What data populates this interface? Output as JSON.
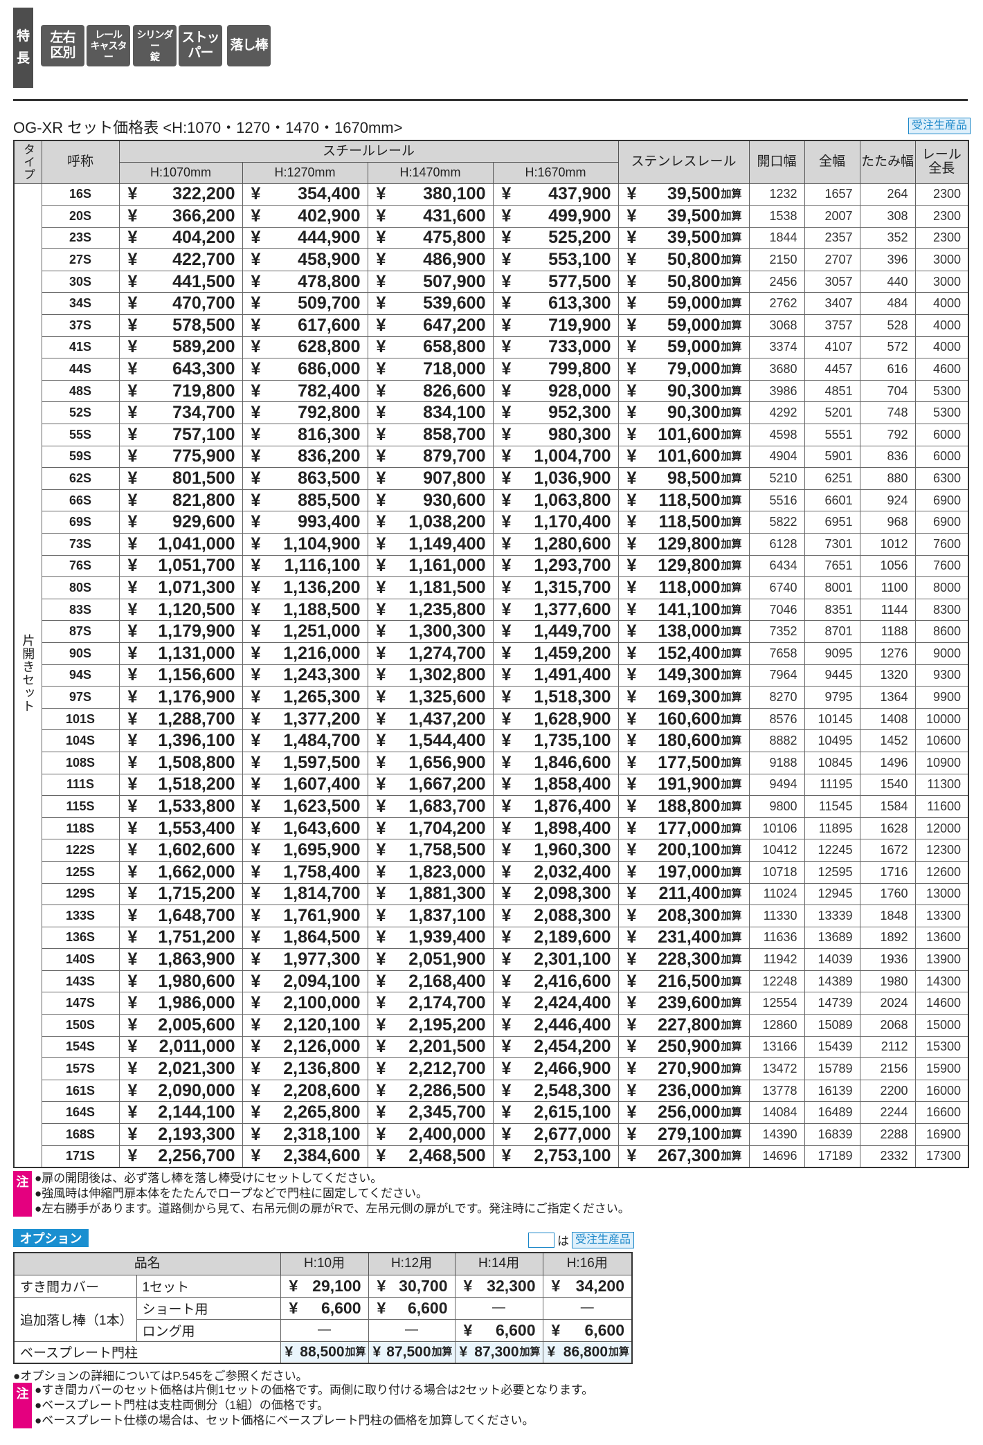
{
  "features": {
    "label": "特\n長",
    "tags": [
      "左右\n区別",
      "レール\nキャスター",
      "シリンダー\n錠",
      "ストッパー",
      "落し棒"
    ]
  },
  "title": "OG-XR セット価格表 <H:1070・1270・1470・1670mm>",
  "made_to_order": "受注生産品",
  "price_table": {
    "headers": {
      "type": "タイプ",
      "name": "呼称",
      "steel": "スチールレール",
      "heights": [
        "H:1070mm",
        "H:1270mm",
        "H:1470mm",
        "H:1670mm"
      ],
      "stainless": "ステンレスレール",
      "opening": "開口幅",
      "width": "全幅",
      "folded": "たたみ幅",
      "rail": "レール\n全長"
    },
    "type_label": "片開きセット",
    "yen": "¥",
    "surcharge": "加算",
    "rows": [
      [
        "16S",
        "322,200",
        "354,400",
        "380,100",
        "437,900",
        "39,500",
        1232,
        1657,
        264,
        2300
      ],
      [
        "20S",
        "366,200",
        "402,900",
        "431,600",
        "499,900",
        "39,500",
        1538,
        2007,
        308,
        2300
      ],
      [
        "23S",
        "404,200",
        "444,900",
        "475,800",
        "525,200",
        "39,500",
        1844,
        2357,
        352,
        2300
      ],
      [
        "27S",
        "422,700",
        "458,900",
        "486,900",
        "553,100",
        "50,800",
        2150,
        2707,
        396,
        3000
      ],
      [
        "30S",
        "441,500",
        "478,800",
        "507,900",
        "577,500",
        "50,800",
        2456,
        3057,
        440,
        3000
      ],
      [
        "34S",
        "470,700",
        "509,700",
        "539,600",
        "613,300",
        "59,000",
        2762,
        3407,
        484,
        4000
      ],
      [
        "37S",
        "578,500",
        "617,600",
        "647,200",
        "719,900",
        "59,000",
        3068,
        3757,
        528,
        4000
      ],
      [
        "41S",
        "589,200",
        "628,800",
        "658,800",
        "733,000",
        "59,000",
        3374,
        4107,
        572,
        4000
      ],
      [
        "44S",
        "643,300",
        "686,000",
        "718,000",
        "799,800",
        "79,000",
        3680,
        4457,
        616,
        4600
      ],
      [
        "48S",
        "719,800",
        "782,400",
        "826,600",
        "928,000",
        "90,300",
        3986,
        4851,
        704,
        5300
      ],
      [
        "52S",
        "734,700",
        "792,800",
        "834,100",
        "952,300",
        "90,300",
        4292,
        5201,
        748,
        5300
      ],
      [
        "55S",
        "757,100",
        "816,300",
        "858,700",
        "980,300",
        "101,600",
        4598,
        5551,
        792,
        6000
      ],
      [
        "59S",
        "775,900",
        "836,200",
        "879,700",
        "1,004,700",
        "101,600",
        4904,
        5901,
        836,
        6000
      ],
      [
        "62S",
        "801,500",
        "863,500",
        "907,800",
        "1,036,900",
        "98,500",
        5210,
        6251,
        880,
        6300
      ],
      [
        "66S",
        "821,800",
        "885,500",
        "930,600",
        "1,063,800",
        "118,500",
        5516,
        6601,
        924,
        6900
      ],
      [
        "69S",
        "929,600",
        "993,400",
        "1,038,200",
        "1,170,400",
        "118,500",
        5822,
        6951,
        968,
        6900
      ],
      [
        "73S",
        "1,041,000",
        "1,104,900",
        "1,149,400",
        "1,280,600",
        "129,800",
        6128,
        7301,
        1012,
        7600
      ],
      [
        "76S",
        "1,051,700",
        "1,116,100",
        "1,161,000",
        "1,293,700",
        "129,800",
        6434,
        7651,
        1056,
        7600
      ],
      [
        "80S",
        "1,071,300",
        "1,136,200",
        "1,181,500",
        "1,315,700",
        "118,000",
        6740,
        8001,
        1100,
        8000
      ],
      [
        "83S",
        "1,120,500",
        "1,188,500",
        "1,235,800",
        "1,377,600",
        "141,100",
        7046,
        8351,
        1144,
        8300
      ],
      [
        "87S",
        "1,179,900",
        "1,251,000",
        "1,300,300",
        "1,449,700",
        "138,000",
        7352,
        8701,
        1188,
        8600
      ],
      [
        "90S",
        "1,131,000",
        "1,216,000",
        "1,274,700",
        "1,459,200",
        "152,400",
        7658,
        9095,
        1276,
        9000
      ],
      [
        "94S",
        "1,156,600",
        "1,243,300",
        "1,302,800",
        "1,491,400",
        "149,300",
        7964,
        9445,
        1320,
        9300
      ],
      [
        "97S",
        "1,176,900",
        "1,265,300",
        "1,325,600",
        "1,518,300",
        "169,300",
        8270,
        9795,
        1364,
        9900
      ],
      [
        "101S",
        "1,288,700",
        "1,377,200",
        "1,437,200",
        "1,628,900",
        "160,600",
        8576,
        10145,
        1408,
        10000
      ],
      [
        "104S",
        "1,396,100",
        "1,484,700",
        "1,544,400",
        "1,735,100",
        "180,600",
        8882,
        10495,
        1452,
        10600
      ],
      [
        "108S",
        "1,508,800",
        "1,597,500",
        "1,656,900",
        "1,846,600",
        "177,500",
        9188,
        10845,
        1496,
        10900
      ],
      [
        "111S",
        "1,518,200",
        "1,607,400",
        "1,667,200",
        "1,858,400",
        "191,900",
        9494,
        11195,
        1540,
        11300
      ],
      [
        "115S",
        "1,533,800",
        "1,623,500",
        "1,683,700",
        "1,876,400",
        "188,800",
        9800,
        11545,
        1584,
        11600
      ],
      [
        "118S",
        "1,553,400",
        "1,643,600",
        "1,704,200",
        "1,898,400",
        "177,000",
        10106,
        11895,
        1628,
        12000
      ],
      [
        "122S",
        "1,602,600",
        "1,695,900",
        "1,758,500",
        "1,960,300",
        "200,100",
        10412,
        12245,
        1672,
        12300
      ],
      [
        "125S",
        "1,662,000",
        "1,758,400",
        "1,823,000",
        "2,032,400",
        "197,000",
        10718,
        12595,
        1716,
        12600
      ],
      [
        "129S",
        "1,715,200",
        "1,814,700",
        "1,881,300",
        "2,098,300",
        "211,400",
        11024,
        12945,
        1760,
        13000
      ],
      [
        "133S",
        "1,648,700",
        "1,761,900",
        "1,837,100",
        "2,088,300",
        "208,300",
        11330,
        13339,
        1848,
        13300
      ],
      [
        "136S",
        "1,751,200",
        "1,864,500",
        "1,939,400",
        "2,189,600",
        "231,400",
        11636,
        13689,
        1892,
        13600
      ],
      [
        "140S",
        "1,863,900",
        "1,977,300",
        "2,051,900",
        "2,301,100",
        "228,300",
        11942,
        14039,
        1936,
        13900
      ],
      [
        "143S",
        "1,980,600",
        "2,094,100",
        "2,168,400",
        "2,416,600",
        "216,500",
        12248,
        14389,
        1980,
        14300
      ],
      [
        "147S",
        "1,986,000",
        "2,100,000",
        "2,174,700",
        "2,424,400",
        "239,600",
        12554,
        14739,
        2024,
        14600
      ],
      [
        "150S",
        "2,005,600",
        "2,120,100",
        "2,195,200",
        "2,446,400",
        "227,800",
        12860,
        15089,
        2068,
        15000
      ],
      [
        "154S",
        "2,011,000",
        "2,126,000",
        "2,201,500",
        "2,454,200",
        "250,900",
        13166,
        15439,
        2112,
        15300
      ],
      [
        "157S",
        "2,021,300",
        "2,136,800",
        "2,212,700",
        "2,466,900",
        "270,900",
        13472,
        15789,
        2156,
        15900
      ],
      [
        "161S",
        "2,090,000",
        "2,208,600",
        "2,286,500",
        "2,548,300",
        "236,000",
        13778,
        16139,
        2200,
        16000
      ],
      [
        "164S",
        "2,144,100",
        "2,265,800",
        "2,345,700",
        "2,615,100",
        "256,000",
        14084,
        16489,
        2244,
        16600
      ],
      [
        "168S",
        "2,193,300",
        "2,318,100",
        "2,400,000",
        "2,677,000",
        "279,100",
        14390,
        16839,
        2288,
        16900
      ],
      [
        "171S",
        "2,256,700",
        "2,384,600",
        "2,468,500",
        "2,753,100",
        "267,300",
        14696,
        17189,
        2332,
        17300
      ]
    ]
  },
  "notes": {
    "label": "注",
    "items": [
      "●扉の開閉後は、必ず落し棒を落し棒受けにセットしてください。",
      "●強風時は伸縮門扉本体をたたんでロープなどで門柱に固定してください。",
      "●左右勝手があります。道路側から見て、右吊元側の扉がRで、左吊元側の扉がLです。発注時にご指定ください。"
    ]
  },
  "options": {
    "label": "オプション",
    "legend_text": "は",
    "headers": {
      "item": "品名",
      "heights": [
        "H:10用",
        "H:12用",
        "H:14用",
        "H:16用"
      ]
    },
    "cover": {
      "name": "すき間カバー",
      "variant": "1セット",
      "prices": [
        "29,100",
        "30,700",
        "32,300",
        "34,200"
      ]
    },
    "drop_rod": {
      "name": "追加落し棒（1本）",
      "variants": [
        {
          "variant": "ショート用",
          "prices": [
            "6,600",
            "6,600",
            "—",
            "—"
          ]
        },
        {
          "variant": "ロング用",
          "prices": [
            "—",
            "—",
            "6,600",
            "6,600"
          ]
        }
      ]
    },
    "base_plate": {
      "name": "ベースプレート門柱",
      "prices": [
        "88,500",
        "87,500",
        "87,300",
        "86,800"
      ]
    }
  },
  "options_footer": "●オプションの詳細についてはP.545をご参照ください。",
  "option_notes": {
    "label": "注",
    "items": [
      "●すき間カバーのセット価格は片側1セットの価格です。両側に取り付ける場合は2セット必要となります。",
      "●ベースプレート門柱は支柱両側分（1組）の価格です。",
      "●ベースプレート仕様の場合は、セット価格にベースプレート門柱の価格を加算してください。"
    ]
  }
}
